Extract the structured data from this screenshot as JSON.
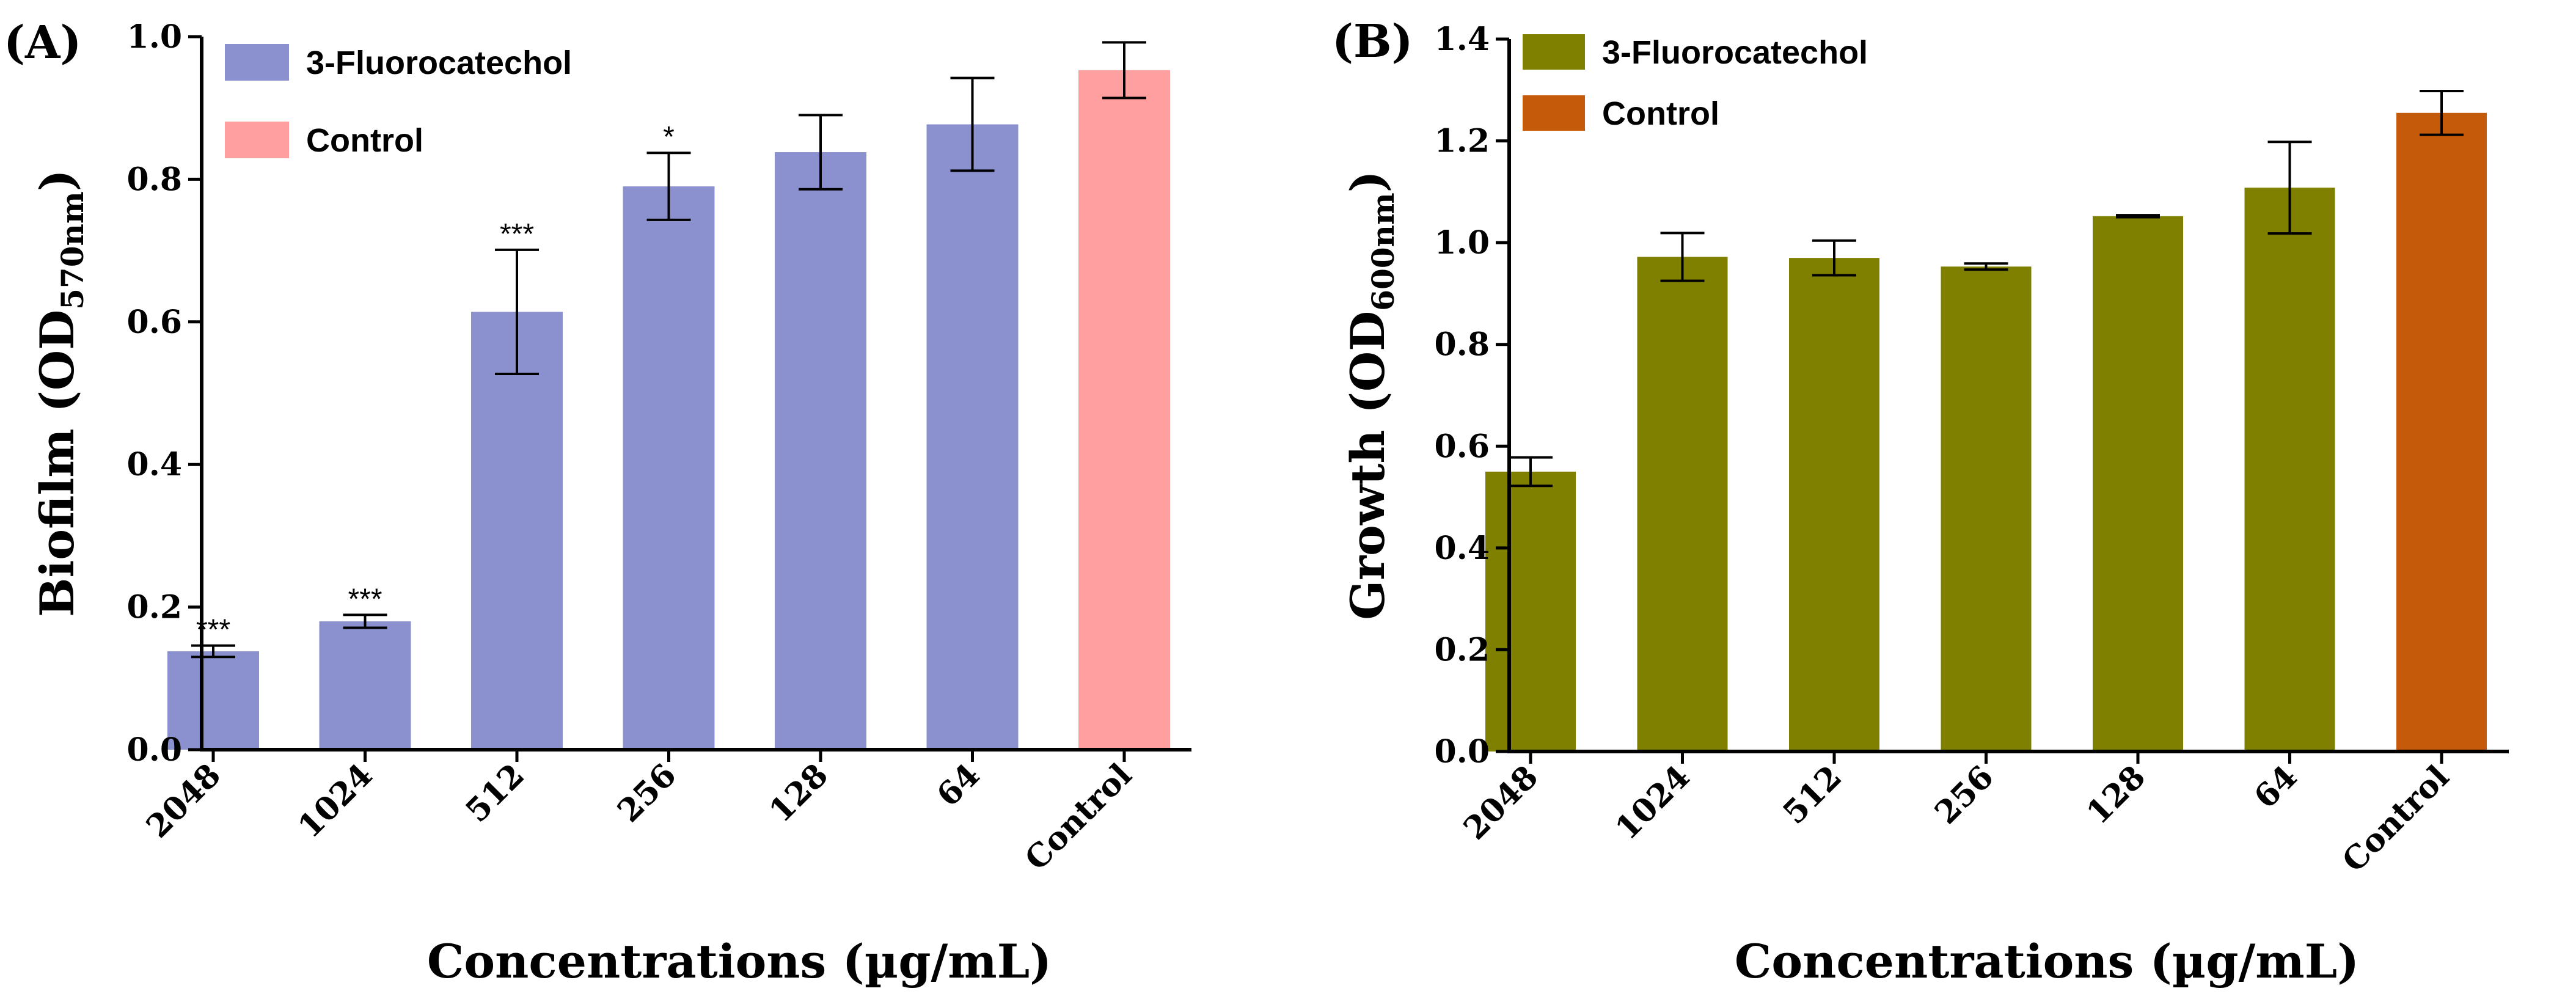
{
  "chart_data": [
    {
      "type": "bar",
      "panel_label": "(A)",
      "categories": [
        "2048",
        "1024",
        "512",
        "256",
        "128",
        "64",
        "Control"
      ],
      "values": [
        0.138,
        0.18,
        0.614,
        0.79,
        0.838,
        0.877,
        0.953
      ],
      "errors": [
        0.008,
        0.009,
        0.087,
        0.047,
        0.052,
        0.065,
        0.039
      ],
      "significance": [
        "***",
        "***",
        "***",
        "*",
        "",
        "",
        ""
      ],
      "series_index": [
        0,
        0,
        0,
        0,
        0,
        0,
        1
      ],
      "legend": [
        {
          "label": "3-Fluorocatechol",
          "color": "#8b91cf"
        },
        {
          "label": "Control",
          "color": "#ff9f9f"
        }
      ],
      "ylabel_main": "Biofilm (OD",
      "ylabel_sub": "570nm",
      "ylabel_close": ")",
      "xlabel": "Concentrations (µg/mL)",
      "ylim": [
        0,
        1.0
      ],
      "yticks": [
        "0.0",
        "0.2",
        "0.4",
        "0.6",
        "0.8",
        "1.0"
      ],
      "ytick_values": [
        0,
        0.2,
        0.4,
        0.6,
        0.8,
        1.0
      ]
    },
    {
      "type": "bar",
      "panel_label": "(B)",
      "categories": [
        "2048",
        "1024",
        "512",
        "256",
        "128",
        "64",
        "Control"
      ],
      "values": [
        0.55,
        0.972,
        0.97,
        0.953,
        1.052,
        1.108,
        1.255
      ],
      "errors": [
        0.028,
        0.047,
        0.034,
        0.006,
        0.002,
        0.09,
        0.043
      ],
      "significance": [
        "",
        "",
        "",
        "",
        "",
        "",
        ""
      ],
      "series_index": [
        0,
        0,
        0,
        0,
        0,
        0,
        1
      ],
      "legend": [
        {
          "label": "3-Fluorocatechol",
          "color": "#7f7f00"
        },
        {
          "label": "Control",
          "color": "#c55a0a"
        }
      ],
      "ylabel_main": "Growth (OD",
      "ylabel_sub": "600nm",
      "ylabel_close": ")",
      "xlabel": "Concentrations (µg/mL)",
      "ylim": [
        0,
        1.4
      ],
      "yticks": [
        "0.0",
        "0.2",
        "0.4",
        "0.6",
        "0.8",
        "1.0",
        "1.2",
        "1.4"
      ],
      "ytick_values": [
        0,
        0.2,
        0.4,
        0.6,
        0.8,
        1.0,
        1.2,
        1.4
      ]
    }
  ]
}
